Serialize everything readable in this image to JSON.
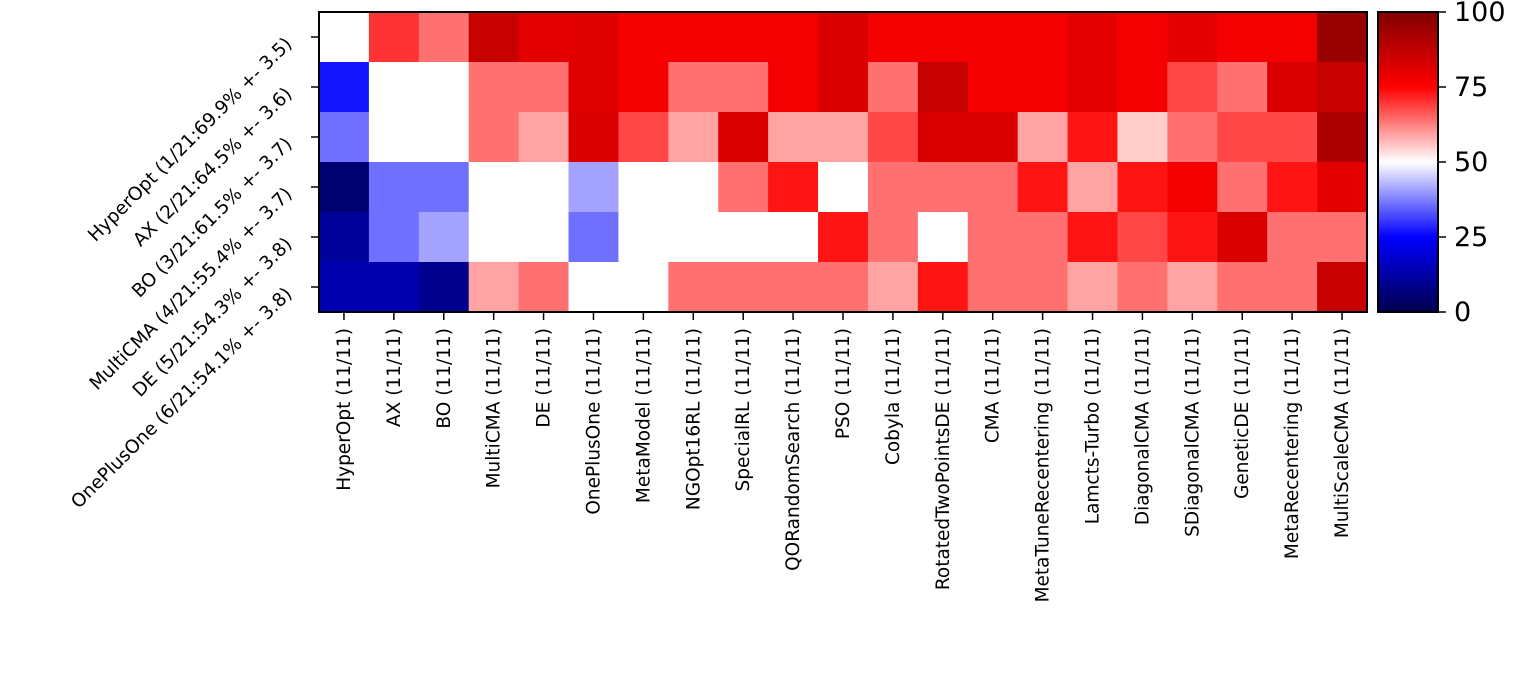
{
  "chart_data": {
    "type": "heatmap",
    "rows": [
      "HyperOpt (1/21:69.9% +- 3.5)",
      "AX (2/21:64.5% +- 3.6)",
      "BO (3/21:61.5% +- 3.7)",
      "MultiCMA (4/21:55.4% +- 3.7)",
      "DE (5/21:54.3% +- 3.8)",
      "OnePlusOne (6/21:54.1% +- 3.8)"
    ],
    "columns": [
      "HyperOpt (11/11)",
      "AX (11/11)",
      "BO (11/11)",
      "MultiCMA (11/11)",
      "DE (11/11)",
      "OnePlusOne (11/11)",
      "MetaModel (11/11)",
      "NGOpt16RL (11/11)",
      "SpecialRL (11/11)",
      "QORandomSearch (11/11)",
      "PSO (11/11)",
      "Cobyla (11/11)",
      "RotatedTwoPointsDE (11/11)",
      "CMA (11/11)",
      "MetaTuneRecentering (11/11)",
      "Lamcts-Turbo (11/11)",
      "DiagonalCMA (11/11)",
      "SDiagonalCMA (11/11)",
      "GeneticDE (11/11)",
      "MetaRecentering (11/11)",
      "MultiScaleCMA (11/11)"
    ],
    "values": [
      [
        50,
        70,
        64,
        86,
        80,
        81,
        77,
        77,
        77,
        77,
        82,
        77,
        77,
        77,
        77,
        80,
        77,
        80,
        77,
        77,
        95
      ],
      [
        27,
        50,
        50,
        64,
        64,
        81,
        77,
        64,
        64,
        77,
        82,
        64,
        86,
        77,
        77,
        80,
        77,
        68,
        64,
        82,
        86
      ],
      [
        36,
        50,
        50,
        64,
        59,
        82,
        68,
        59,
        82,
        59,
        59,
        68,
        82,
        82,
        59,
        73,
        55,
        64,
        68,
        68,
        91
      ],
      [
        5,
        36,
        36,
        50,
        50,
        41,
        50,
        50,
        64,
        73,
        50,
        64,
        64,
        64,
        73,
        59,
        73,
        77,
        64,
        73,
        80
      ],
      [
        11,
        36,
        41,
        50,
        50,
        36,
        50,
        50,
        50,
        50,
        73,
        64,
        50,
        64,
        64,
        73,
        68,
        73,
        82,
        64,
        64
      ],
      [
        14,
        14,
        9,
        59,
        64,
        50,
        50,
        64,
        64,
        64,
        64,
        59,
        73,
        64,
        64,
        59,
        64,
        59,
        64,
        64,
        86
      ]
    ],
    "colormap": "seismic",
    "vmin": 0,
    "vmax": 100,
    "colorbar_ticks": [
      0,
      25,
      50,
      75,
      100
    ],
    "title": "",
    "xlabel": "",
    "ylabel": ""
  },
  "colors": {
    "low": "#00004d",
    "mid": "#ffffff",
    "high": "#800000",
    "axis": "#000000"
  }
}
